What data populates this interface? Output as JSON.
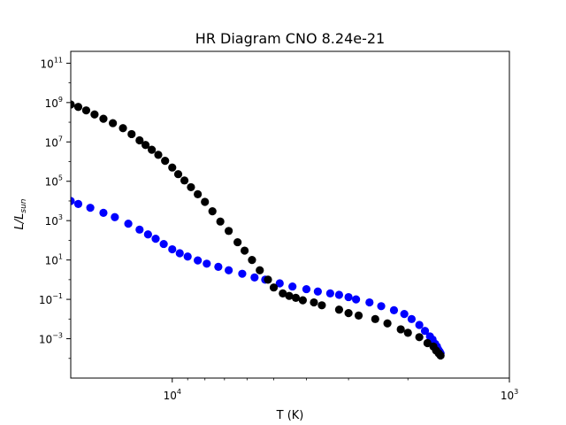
{
  "chart_data": {
    "type": "scatter",
    "title": "HR Diagram CNO 8.24e-21",
    "xlabel": "T (K)",
    "ylabel_main": "L/L",
    "ylabel_sub": "sun",
    "xscale": "log",
    "yscale": "log",
    "x_inverted": true,
    "xlim": [
      20000,
      1000
    ],
    "ylim": [
      1e-05,
      400000000000.0
    ],
    "xticks": [
      {
        "value": 10000,
        "base": "10",
        "exp": "4"
      },
      {
        "value": 1000,
        "base": "10",
        "exp": "3"
      }
    ],
    "yticks": [
      {
        "value": 0.001,
        "base": "10",
        "exp": "−3"
      },
      {
        "value": 0.1,
        "base": "10",
        "exp": "−1"
      },
      {
        "value": 10.0,
        "base": "10",
        "exp": "1"
      },
      {
        "value": 1000.0,
        "base": "10",
        "exp": "3"
      },
      {
        "value": 100000.0,
        "base": "10",
        "exp": "5"
      },
      {
        "value": 10000000.0,
        "base": "10",
        "exp": "7"
      },
      {
        "value": 1000000000.0,
        "base": "10",
        "exp": "9"
      },
      {
        "value": 100000000000.0,
        "base": "10",
        "exp": "11"
      }
    ],
    "series": [
      {
        "color": "#0000ff",
        "points": [
          [
            20000,
            10000
          ],
          [
            19000,
            7000
          ],
          [
            17500,
            4500
          ],
          [
            16000,
            2500
          ],
          [
            14800,
            1500
          ],
          [
            13500,
            700
          ],
          [
            12500,
            350
          ],
          [
            11800,
            200
          ],
          [
            11200,
            120
          ],
          [
            10600,
            65
          ],
          [
            10000,
            35
          ],
          [
            9500,
            22
          ],
          [
            9000,
            15
          ],
          [
            8400,
            9.5
          ],
          [
            7900,
            6.5
          ],
          [
            7300,
            4.5
          ],
          [
            6800,
            3
          ],
          [
            6200,
            2
          ],
          [
            5700,
            1.3
          ],
          [
            5300,
            1
          ],
          [
            4800,
            0.65
          ],
          [
            4400,
            0.45
          ],
          [
            4000,
            0.33
          ],
          [
            3700,
            0.25
          ],
          [
            3400,
            0.2
          ],
          [
            3200,
            0.17
          ],
          [
            3000,
            0.13
          ],
          [
            2850,
            0.1
          ],
          [
            2600,
            0.07
          ],
          [
            2400,
            0.045
          ],
          [
            2200,
            0.028
          ],
          [
            2050,
            0.018
          ],
          [
            1950,
            0.01
          ],
          [
            1850,
            0.005
          ],
          [
            1780,
            0.0025
          ],
          [
            1720,
            0.0013
          ],
          [
            1690,
            0.0009
          ],
          [
            1660,
            0.00055
          ],
          [
            1640,
            0.0004
          ],
          [
            1625,
            0.00028
          ],
          [
            1610,
            0.00022
          ],
          [
            1600,
            0.00018
          ]
        ]
      },
      {
        "color": "#000000",
        "points": [
          [
            20000,
            800000000
          ],
          [
            19000,
            600000000
          ],
          [
            18000,
            400000000
          ],
          [
            17000,
            250000000
          ],
          [
            16000,
            150000000
          ],
          [
            15000,
            90000000
          ],
          [
            14000,
            50000000
          ],
          [
            13200,
            25000000
          ],
          [
            12500,
            12000000
          ],
          [
            12000,
            7000000
          ],
          [
            11500,
            4000000
          ],
          [
            11000,
            2200000
          ],
          [
            10500,
            1100000
          ],
          [
            10000,
            500000
          ],
          [
            9600,
            230000
          ],
          [
            9200,
            110000
          ],
          [
            8800,
            50000
          ],
          [
            8400,
            22000
          ],
          [
            8000,
            9000
          ],
          [
            7600,
            3000
          ],
          [
            7200,
            900
          ],
          [
            6800,
            300
          ],
          [
            6400,
            80
          ],
          [
            6100,
            30
          ],
          [
            5800,
            10
          ],
          [
            5500,
            3
          ],
          [
            5200,
            1
          ],
          [
            5000,
            0.4
          ],
          [
            4700,
            0.2
          ],
          [
            4500,
            0.15
          ],
          [
            4300,
            0.12
          ],
          [
            4100,
            0.09
          ],
          [
            3800,
            0.07
          ],
          [
            3600,
            0.05
          ],
          [
            3200,
            0.03
          ],
          [
            3000,
            0.02
          ],
          [
            2800,
            0.015
          ],
          [
            2500,
            0.01
          ],
          [
            2300,
            0.006
          ],
          [
            2100,
            0.003
          ],
          [
            2000,
            0.002
          ],
          [
            1850,
            0.0012
          ],
          [
            1750,
            0.0006
          ],
          [
            1680,
            0.0004
          ],
          [
            1650,
            0.00025
          ],
          [
            1620,
            0.00018
          ],
          [
            1600,
            0.00014
          ]
        ]
      }
    ]
  }
}
